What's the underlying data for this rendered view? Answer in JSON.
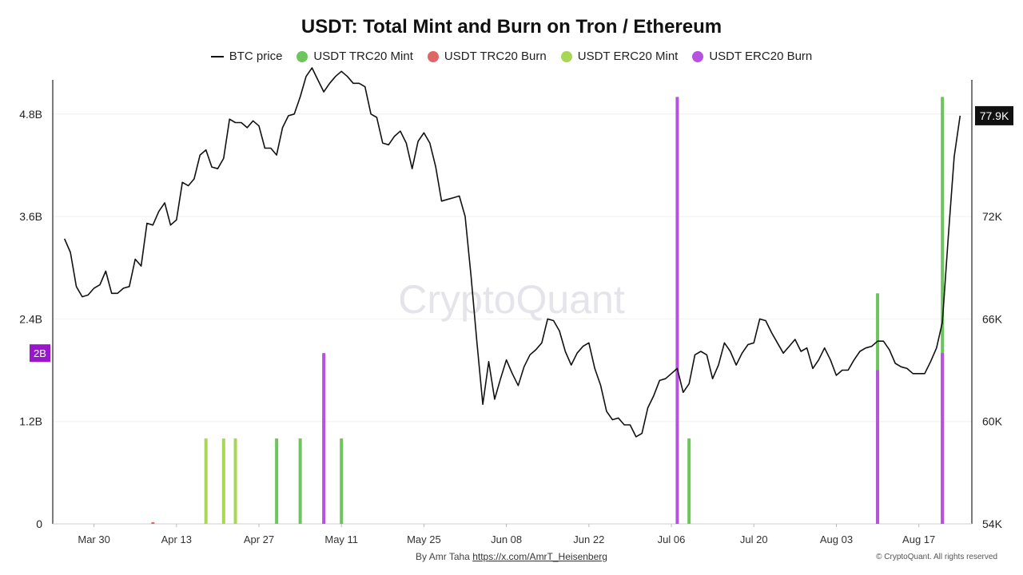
{
  "title": "USDT: Total Mint and Burn on Tron / Ethereum",
  "watermark": "CryptoQuant",
  "footer": {
    "author": "By Amr Taha",
    "link": "https://x.com/AmrT_Heisenberg",
    "copyright": "© CryptoQuant. All rights reserved"
  },
  "chart_data": {
    "type": "bar",
    "legend": [
      {
        "name": "BTC price",
        "kind": "line",
        "color": "#111111"
      },
      {
        "name": "USDT TRC20 Mint",
        "kind": "dot",
        "color": "#6cc65b"
      },
      {
        "name": "USDT TRC20 Burn",
        "kind": "dot",
        "color": "#e06666"
      },
      {
        "name": "USDT ERC20 Mint",
        "kind": "dot",
        "color": "#a8d655"
      },
      {
        "name": "USDT ERC20 Burn",
        "kind": "dot",
        "color": "#b752e0"
      }
    ],
    "legend_position": "top-center",
    "x_range": [
      "2024-03-23",
      "2024-08-26"
    ],
    "x_ticks": [
      {
        "date": "2024-03-30",
        "label": "Mar 30"
      },
      {
        "date": "2024-04-13",
        "label": "Apr 13"
      },
      {
        "date": "2024-04-27",
        "label": "Apr 27"
      },
      {
        "date": "2024-05-11",
        "label": "May 11"
      },
      {
        "date": "2024-05-25",
        "label": "May 25"
      },
      {
        "date": "2024-06-08",
        "label": "Jun 08"
      },
      {
        "date": "2024-06-22",
        "label": "Jun 22"
      },
      {
        "date": "2024-07-06",
        "label": "Jul 06"
      },
      {
        "date": "2024-07-20",
        "label": "Jul 20"
      },
      {
        "date": "2024-08-03",
        "label": "Aug 03"
      },
      {
        "date": "2024-08-17",
        "label": "Aug 17"
      }
    ],
    "y_left": {
      "min": 0,
      "max": 5.2,
      "ticks": [
        0,
        1.2,
        2.4,
        3.6,
        4.8
      ],
      "tick_labels": [
        "0",
        "1.2B",
        "2.4B",
        "3.6B",
        "4.8B"
      ],
      "marker_value": 2,
      "marker_label": "2B"
    },
    "y_right": {
      "min": 54,
      "max": 80,
      "ticks": [
        54,
        60,
        66,
        72
      ],
      "tick_labels": [
        "54K",
        "60K",
        "66K",
        "72K"
      ],
      "last_value": 77.9,
      "last_label": "77.9K"
    },
    "grid": true,
    "bars": [
      {
        "date": "2024-04-09",
        "series": "USDT TRC20 Burn",
        "value": 0.02
      },
      {
        "date": "2024-04-18",
        "series": "USDT ERC20 Mint",
        "value": 1.0
      },
      {
        "date": "2024-04-21",
        "series": "USDT ERC20 Mint",
        "value": 1.0
      },
      {
        "date": "2024-04-23",
        "series": "USDT ERC20 Mint",
        "value": 1.0
      },
      {
        "date": "2024-04-30",
        "series": "USDT TRC20 Mint",
        "value": 1.0
      },
      {
        "date": "2024-05-04",
        "series": "USDT TRC20 Mint",
        "value": 1.0
      },
      {
        "date": "2024-05-08",
        "series": "USDT ERC20 Burn",
        "value": 2.0
      },
      {
        "date": "2024-05-11",
        "series": "USDT TRC20 Mint",
        "value": 1.0
      },
      {
        "date": "2024-07-07",
        "series": "USDT ERC20 Burn",
        "value": 5.0
      },
      {
        "date": "2024-07-09",
        "series": "USDT TRC20 Mint",
        "value": 1.0
      },
      {
        "date": "2024-08-10",
        "series": "USDT TRC20 Mint",
        "value": 2.7
      },
      {
        "date": "2024-08-10",
        "series": "USDT ERC20 Burn",
        "value": 1.8
      },
      {
        "date": "2024-08-21",
        "series": "USDT TRC20 Mint",
        "value": 5.0
      },
      {
        "date": "2024-08-21",
        "series": "USDT ERC20 Burn",
        "value": 2.0
      }
    ],
    "btc_price": [
      [
        "2024-03-25",
        70.7
      ],
      [
        "2024-03-26",
        69.9
      ],
      [
        "2024-03-27",
        67.9
      ],
      [
        "2024-03-28",
        67.3
      ],
      [
        "2024-03-29",
        67.4
      ],
      [
        "2024-03-30",
        67.8
      ],
      [
        "2024-03-31",
        68.0
      ],
      [
        "2024-04-01",
        68.8
      ],
      [
        "2024-04-02",
        67.5
      ],
      [
        "2024-04-03",
        67.5
      ],
      [
        "2024-04-04",
        67.8
      ],
      [
        "2024-04-05",
        67.9
      ],
      [
        "2024-04-06",
        69.5
      ],
      [
        "2024-04-07",
        69.1
      ],
      [
        "2024-04-08",
        71.6
      ],
      [
        "2024-04-09",
        71.5
      ],
      [
        "2024-04-10",
        72.3
      ],
      [
        "2024-04-11",
        72.8
      ],
      [
        "2024-04-12",
        71.5
      ],
      [
        "2024-04-13",
        71.8
      ],
      [
        "2024-04-14",
        74.0
      ],
      [
        "2024-04-15",
        73.8
      ],
      [
        "2024-04-16",
        74.2
      ],
      [
        "2024-04-17",
        75.6
      ],
      [
        "2024-04-18",
        75.9
      ],
      [
        "2024-04-19",
        74.9
      ],
      [
        "2024-04-20",
        74.8
      ],
      [
        "2024-04-21",
        75.4
      ],
      [
        "2024-04-22",
        77.7
      ],
      [
        "2024-04-23",
        77.5
      ],
      [
        "2024-04-24",
        77.5
      ],
      [
        "2024-04-25",
        77.2
      ],
      [
        "2024-04-26",
        77.6
      ],
      [
        "2024-04-27",
        77.3
      ],
      [
        "2024-04-28",
        76.0
      ],
      [
        "2024-04-29",
        76.0
      ],
      [
        "2024-04-30",
        75.6
      ],
      [
        "2024-05-01",
        77.2
      ],
      [
        "2024-05-02",
        77.9
      ],
      [
        "2024-05-03",
        78.0
      ],
      [
        "2024-05-04",
        79.0
      ],
      [
        "2024-05-05",
        80.2
      ],
      [
        "2024-05-06",
        80.7
      ],
      [
        "2024-05-07",
        80.0
      ],
      [
        "2024-05-08",
        79.3
      ],
      [
        "2024-05-09",
        79.8
      ],
      [
        "2024-05-10",
        80.2
      ],
      [
        "2024-05-11",
        80.5
      ],
      [
        "2024-05-12",
        80.2
      ],
      [
        "2024-05-13",
        79.8
      ],
      [
        "2024-05-14",
        79.8
      ],
      [
        "2024-05-15",
        79.6
      ],
      [
        "2024-05-16",
        78.0
      ],
      [
        "2024-05-17",
        77.8
      ],
      [
        "2024-05-18",
        76.3
      ],
      [
        "2024-05-19",
        76.2
      ],
      [
        "2024-05-20",
        76.7
      ],
      [
        "2024-05-21",
        77.0
      ],
      [
        "2024-05-22",
        76.3
      ],
      [
        "2024-05-23",
        74.8
      ],
      [
        "2024-05-24",
        76.4
      ],
      [
        "2024-05-25",
        76.9
      ],
      [
        "2024-05-26",
        76.3
      ],
      [
        "2024-05-27",
        74.9
      ],
      [
        "2024-05-28",
        72.9
      ],
      [
        "2024-05-29",
        73.0
      ],
      [
        "2024-05-30",
        73.1
      ],
      [
        "2024-05-31",
        73.2
      ],
      [
        "2024-06-01",
        72.0
      ],
      [
        "2024-06-02",
        68.5
      ],
      [
        "2024-06-03",
        64.6
      ],
      [
        "2024-06-04",
        61.0
      ],
      [
        "2024-06-05",
        63.5
      ],
      [
        "2024-06-06",
        61.3
      ],
      [
        "2024-06-07",
        62.5
      ],
      [
        "2024-06-08",
        63.6
      ],
      [
        "2024-06-09",
        62.8
      ],
      [
        "2024-06-10",
        62.1
      ],
      [
        "2024-06-11",
        63.2
      ],
      [
        "2024-06-12",
        63.9
      ],
      [
        "2024-06-13",
        64.2
      ],
      [
        "2024-06-14",
        64.6
      ],
      [
        "2024-06-15",
        66.0
      ],
      [
        "2024-06-16",
        65.9
      ],
      [
        "2024-06-17",
        65.3
      ],
      [
        "2024-06-18",
        64.1
      ],
      [
        "2024-06-19",
        63.3
      ],
      [
        "2024-06-20",
        64.0
      ],
      [
        "2024-06-21",
        64.4
      ],
      [
        "2024-06-22",
        64.6
      ],
      [
        "2024-06-23",
        63.1
      ],
      [
        "2024-06-24",
        62.1
      ],
      [
        "2024-06-25",
        60.6
      ],
      [
        "2024-06-26",
        60.1
      ],
      [
        "2024-06-27",
        60.2
      ],
      [
        "2024-06-28",
        59.8
      ],
      [
        "2024-06-29",
        59.8
      ],
      [
        "2024-06-30",
        59.1
      ],
      [
        "2024-07-01",
        59.3
      ],
      [
        "2024-07-02",
        60.8
      ],
      [
        "2024-07-03",
        61.5
      ],
      [
        "2024-07-04",
        62.4
      ],
      [
        "2024-07-05",
        62.5
      ],
      [
        "2024-07-06",
        62.8
      ],
      [
        "2024-07-07",
        63.1
      ],
      [
        "2024-07-08",
        61.7
      ],
      [
        "2024-07-09",
        62.2
      ],
      [
        "2024-07-10",
        63.9
      ],
      [
        "2024-07-11",
        64.1
      ],
      [
        "2024-07-12",
        63.9
      ],
      [
        "2024-07-13",
        62.5
      ],
      [
        "2024-07-14",
        63.3
      ],
      [
        "2024-07-15",
        64.6
      ],
      [
        "2024-07-16",
        64.1
      ],
      [
        "2024-07-17",
        63.3
      ],
      [
        "2024-07-18",
        64.0
      ],
      [
        "2024-07-19",
        64.5
      ],
      [
        "2024-07-20",
        64.6
      ],
      [
        "2024-07-21",
        66.0
      ],
      [
        "2024-07-22",
        65.9
      ],
      [
        "2024-07-23",
        65.2
      ],
      [
        "2024-07-24",
        64.6
      ],
      [
        "2024-07-25",
        64.0
      ],
      [
        "2024-07-26",
        64.4
      ],
      [
        "2024-07-27",
        64.8
      ],
      [
        "2024-07-28",
        64.1
      ],
      [
        "2024-07-29",
        64.3
      ],
      [
        "2024-07-30",
        63.1
      ],
      [
        "2024-07-31",
        63.6
      ],
      [
        "2024-08-01",
        64.3
      ],
      [
        "2024-08-02",
        63.6
      ],
      [
        "2024-08-03",
        62.7
      ],
      [
        "2024-08-04",
        63.0
      ],
      [
        "2024-08-05",
        63.0
      ],
      [
        "2024-08-06",
        63.6
      ],
      [
        "2024-08-07",
        64.1
      ],
      [
        "2024-08-08",
        64.3
      ],
      [
        "2024-08-09",
        64.4
      ],
      [
        "2024-08-10",
        64.7
      ],
      [
        "2024-08-11",
        64.7
      ],
      [
        "2024-08-12",
        64.2
      ],
      [
        "2024-08-13",
        63.4
      ],
      [
        "2024-08-14",
        63.2
      ],
      [
        "2024-08-15",
        63.1
      ],
      [
        "2024-08-16",
        62.8
      ],
      [
        "2024-08-17",
        62.8
      ],
      [
        "2024-08-18",
        62.8
      ],
      [
        "2024-08-19",
        63.5
      ],
      [
        "2024-08-20",
        64.3
      ],
      [
        "2024-08-21",
        65.8
      ],
      [
        "2024-08-22",
        70.8
      ],
      [
        "2024-08-23",
        75.5
      ],
      [
        "2024-08-24",
        77.9
      ]
    ]
  }
}
